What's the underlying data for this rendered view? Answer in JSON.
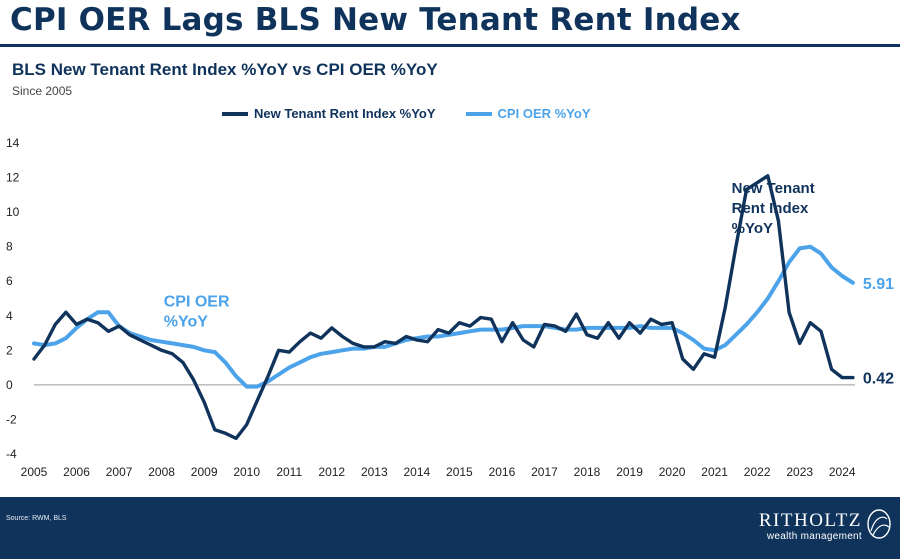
{
  "header": {
    "title": "CPI OER Lags BLS New Tenant Rent Index",
    "subtitle": "BLS New Tenant Rent Index %YoY vs CPI OER %YoY",
    "since": "Since 2005"
  },
  "footer": {
    "source": "Source: RWM, BLS",
    "brand_name": "RITHOLTZ",
    "brand_sub": "wealth management"
  },
  "colors": {
    "dark": "#10335c",
    "light": "#4ca3ea"
  },
  "chart_data": {
    "type": "line",
    "ylim": [
      -4,
      14
    ],
    "yticks": [
      "-4",
      "-2",
      "0",
      "2",
      "4",
      "6",
      "8",
      "10",
      "12",
      "14"
    ],
    "xlim": [
      2005,
      2024.3
    ],
    "xticks": [
      "2005",
      "2006",
      "2007",
      "2008",
      "2009",
      "2010",
      "2011",
      "2012",
      "2013",
      "2014",
      "2015",
      "2016",
      "2017",
      "2018",
      "2019",
      "2020",
      "2021",
      "2022",
      "2023",
      "2024"
    ],
    "legend": "top-center",
    "grid": false,
    "series": [
      {
        "name": "New Tenant Rent Index %YoY",
        "color": "#10335c",
        "end_label": "0.42",
        "annotation": [
          "New Tenant",
          "Rent Index",
          "%YoY"
        ],
        "x": [
          2005,
          2005.25,
          2005.5,
          2005.75,
          2006,
          2006.25,
          2006.5,
          2006.75,
          2007,
          2007.25,
          2007.5,
          2007.75,
          2008,
          2008.25,
          2008.5,
          2008.75,
          2009,
          2009.25,
          2009.5,
          2009.75,
          2010,
          2010.25,
          2010.5,
          2010.75,
          2011,
          2011.25,
          2011.5,
          2011.75,
          2012,
          2012.25,
          2012.5,
          2012.75,
          2013,
          2013.25,
          2013.5,
          2013.75,
          2014,
          2014.25,
          2014.5,
          2014.75,
          2015,
          2015.25,
          2015.5,
          2015.75,
          2016,
          2016.25,
          2016.5,
          2016.75,
          2017,
          2017.25,
          2017.5,
          2017.75,
          2018,
          2018.25,
          2018.5,
          2018.75,
          2019,
          2019.25,
          2019.5,
          2019.75,
          2020,
          2020.25,
          2020.5,
          2020.75,
          2021,
          2021.25,
          2021.5,
          2021.75,
          2022,
          2022.25,
          2022.5,
          2022.75,
          2023,
          2023.25,
          2023.5,
          2023.75,
          2024,
          2024.25
        ],
        "values": [
          1.5,
          2.3,
          3.5,
          4.2,
          3.5,
          3.8,
          3.6,
          3.1,
          3.4,
          2.9,
          2.6,
          2.3,
          2.0,
          1.8,
          1.3,
          0.3,
          -1.0,
          -2.6,
          -2.8,
          -3.1,
          -2.3,
          -0.9,
          0.5,
          2.0,
          1.9,
          2.5,
          3.0,
          2.7,
          3.3,
          2.8,
          2.4,
          2.2,
          2.2,
          2.5,
          2.4,
          2.8,
          2.6,
          2.5,
          3.2,
          3.0,
          3.6,
          3.4,
          3.9,
          3.8,
          2.5,
          3.6,
          2.6,
          2.2,
          3.5,
          3.4,
          3.1,
          4.1,
          2.9,
          2.7,
          3.6,
          2.7,
          3.6,
          3.0,
          3.8,
          3.5,
          3.6,
          1.5,
          0.9,
          1.8,
          1.6,
          4.5,
          8.0,
          11.3,
          11.7,
          12.1,
          9.5,
          4.2,
          2.4,
          3.6,
          3.1,
          0.9,
          0.42,
          0.42
        ]
      },
      {
        "name": "CPI OER %YoY",
        "color": "#4ca3ea",
        "end_label": "5.91",
        "annotation": [
          "CPI OER",
          "%YoY"
        ],
        "x": [
          2005,
          2005.25,
          2005.5,
          2005.75,
          2006,
          2006.25,
          2006.5,
          2006.75,
          2007,
          2007.25,
          2007.5,
          2007.75,
          2008,
          2008.25,
          2008.5,
          2008.75,
          2009,
          2009.25,
          2009.5,
          2009.75,
          2010,
          2010.25,
          2010.5,
          2010.75,
          2011,
          2011.25,
          2011.5,
          2011.75,
          2012,
          2012.25,
          2012.5,
          2012.75,
          2013,
          2013.25,
          2013.5,
          2013.75,
          2014,
          2014.25,
          2014.5,
          2014.75,
          2015,
          2015.25,
          2015.5,
          2015.75,
          2016,
          2016.25,
          2016.5,
          2016.75,
          2017,
          2017.25,
          2017.5,
          2017.75,
          2018,
          2018.25,
          2018.5,
          2018.75,
          2019,
          2019.25,
          2019.5,
          2019.75,
          2020,
          2020.25,
          2020.5,
          2020.75,
          2021,
          2021.25,
          2021.5,
          2021.75,
          2022,
          2022.25,
          2022.5,
          2022.75,
          2023,
          2023.25,
          2023.5,
          2023.75,
          2024,
          2024.25
        ],
        "values": [
          2.4,
          2.3,
          2.4,
          2.7,
          3.3,
          3.8,
          4.2,
          4.2,
          3.4,
          3.0,
          2.8,
          2.6,
          2.5,
          2.4,
          2.3,
          2.2,
          2.0,
          1.9,
          1.3,
          0.5,
          -0.1,
          -0.1,
          0.2,
          0.6,
          1.0,
          1.3,
          1.6,
          1.8,
          1.9,
          2.0,
          2.1,
          2.1,
          2.2,
          2.2,
          2.4,
          2.6,
          2.7,
          2.8,
          2.8,
          2.9,
          3.0,
          3.1,
          3.2,
          3.2,
          3.2,
          3.3,
          3.4,
          3.4,
          3.4,
          3.3,
          3.2,
          3.2,
          3.3,
          3.3,
          3.3,
          3.3,
          3.3,
          3.4,
          3.3,
          3.3,
          3.3,
          3.0,
          2.6,
          2.1,
          2.0,
          2.3,
          2.9,
          3.5,
          4.2,
          5.0,
          6.0,
          7.1,
          7.9,
          8.0,
          7.6,
          6.8,
          6.3,
          5.91
        ]
      }
    ]
  }
}
